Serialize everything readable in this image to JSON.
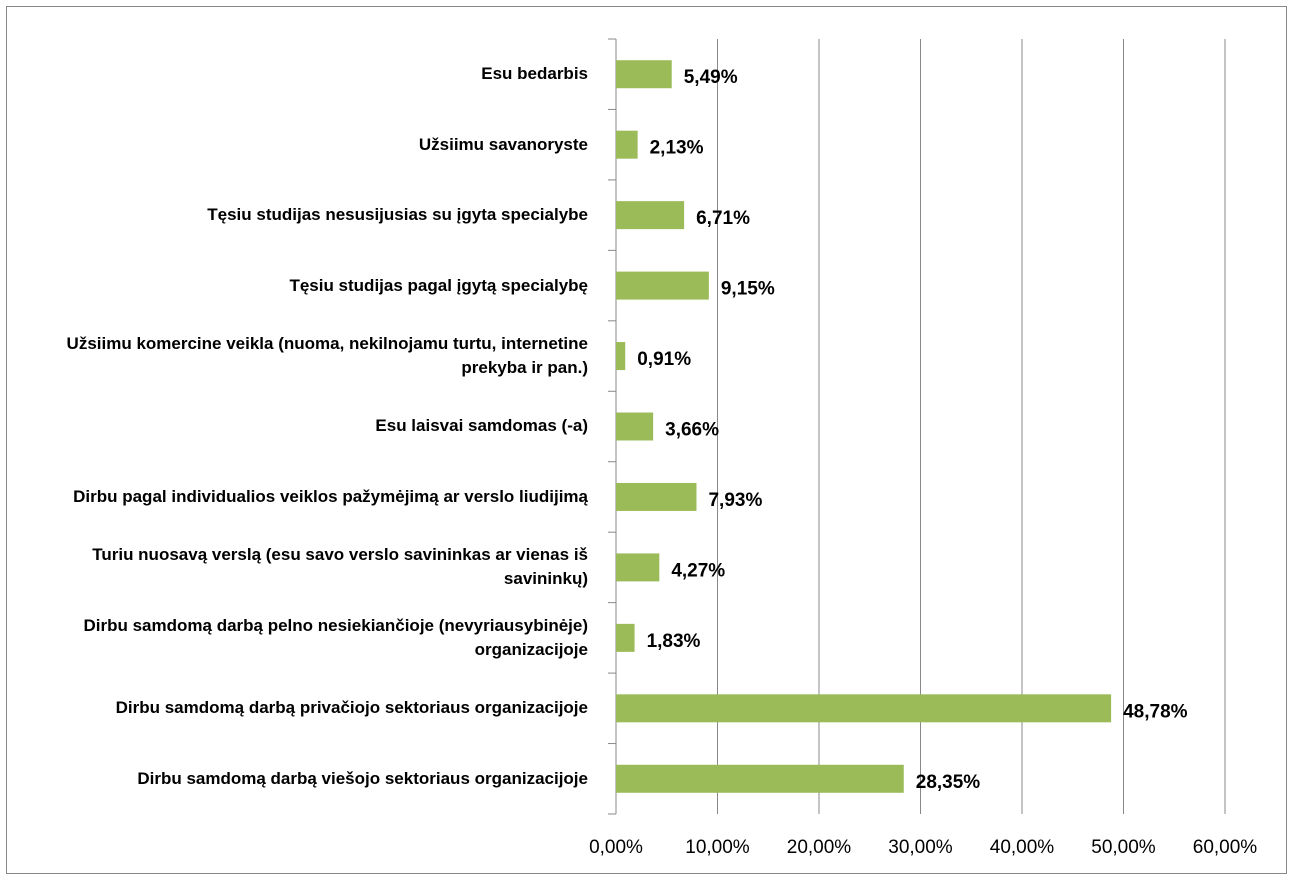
{
  "chart_data": {
    "type": "barh",
    "categories": [
      "Esu bedarbis",
      "Užsiimu savanoryste",
      "Tęsiu studijas nesusijusias su įgyta specialybe",
      "Tęsiu studijas pagal įgytą specialybę",
      "Užsiimu komercine veikla (nuoma, nekilnojamu turtu, internetine prekyba ir pan.)",
      "Esu laisvai samdomas (-a)",
      "Dirbu pagal individualios veiklos pažymėjimą ar verslo liudijimą",
      "Turiu nuosavą verslą (esu savo verslo savininkas ar vienas iš savininkų)",
      "Dirbu samdomą darbą pelno nesiekiančioje (nevyriausybinėje) organizacijoje",
      "Dirbu samdomą darbą privačiojo sektoriaus organizacijoje",
      "Dirbu samdomą darbą viešojo sektoriaus organizacijoje"
    ],
    "values": [
      5.49,
      2.13,
      6.71,
      9.15,
      0.91,
      3.66,
      7.93,
      4.27,
      1.83,
      48.78,
      28.35
    ],
    "value_labels": [
      "5,49%",
      "2,13%",
      "6,71%",
      "9,15%",
      "0,91%",
      "3,66%",
      "7,93%",
      "4,27%",
      "1,83%",
      "48,78%",
      "28,35%"
    ],
    "color": "#9bbb59",
    "xlim": [
      0,
      60
    ],
    "xticks": [
      {
        "value": 0,
        "label": "0,00%"
      },
      {
        "value": 10,
        "label": "10,00%"
      },
      {
        "value": 20,
        "label": "20,00%"
      },
      {
        "value": 30,
        "label": "30,00%"
      },
      {
        "value": 40,
        "label": "40,00%"
      },
      {
        "value": 50,
        "label": "50,00%"
      },
      {
        "value": 60,
        "label": "60,00%"
      }
    ],
    "grid": true
  }
}
